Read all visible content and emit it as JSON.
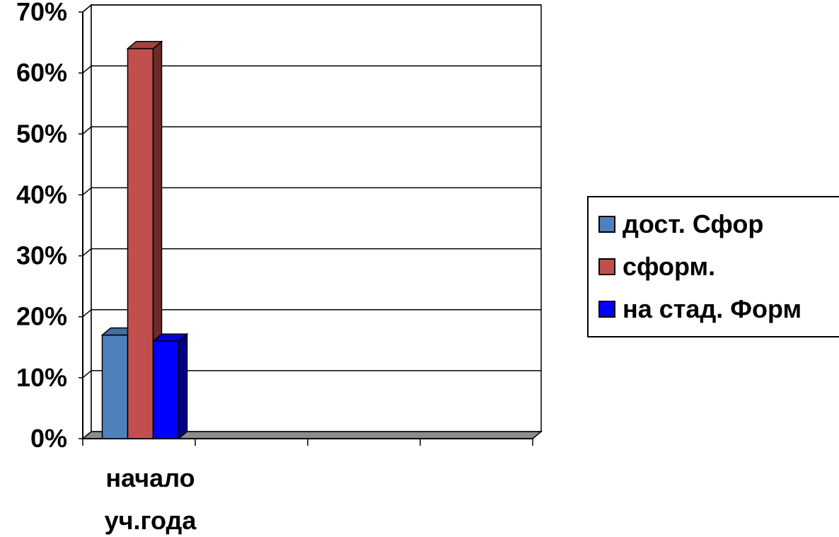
{
  "chart_data": {
    "type": "bar",
    "categories": [
      "начало уч.года",
      "",
      "",
      ""
    ],
    "category_label_lines": [
      [
        "начало",
        "уч.года"
      ]
    ],
    "series": [
      {
        "name": "дост. Сфор",
        "values": [
          0.17,
          null,
          null,
          null
        ],
        "color": "#4F81BD"
      },
      {
        "name": "сформ.",
        "values": [
          0.64,
          null,
          null,
          null
        ],
        "color": "#C0504D"
      },
      {
        "name": "на стад. Форм",
        "values": [
          0.16,
          null,
          null,
          null
        ],
        "color": "#0000FF"
      }
    ],
    "yticks": [
      "0%",
      "10%",
      "20%",
      "30%",
      "40%",
      "50%",
      "60%",
      "70%"
    ],
    "ylim": [
      0,
      0.7
    ],
    "grid": true,
    "legend_position": "right",
    "style": "3d-column"
  }
}
